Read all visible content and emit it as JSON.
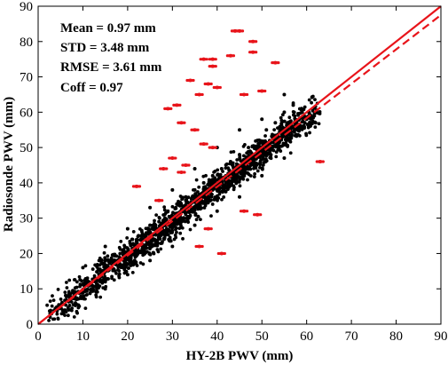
{
  "chart_data": {
    "type": "scatter",
    "title": "",
    "xlabel": "HY-2B PWV (mm)",
    "ylabel": "Radiosonde PWV (mm)",
    "xlim": [
      0,
      90
    ],
    "ylim": [
      0,
      90
    ],
    "xticks": [
      0,
      10,
      20,
      30,
      40,
      50,
      60,
      70,
      80,
      90
    ],
    "yticks": [
      0,
      10,
      20,
      30,
      40,
      50,
      60,
      70,
      80,
      90
    ],
    "grid": false,
    "annotations": [
      "Mean = 0.97 mm",
      "STD = 3.48 mm",
      "RMSE = 3.61 mm",
      "Coff = 0.97"
    ],
    "lines": [
      {
        "kind": "one-to-one",
        "style": "solid",
        "color": "#e8141a",
        "x": [
          0,
          90
        ],
        "y": [
          0,
          90
        ]
      },
      {
        "kind": "fit",
        "style": "dashed",
        "color": "#e8141a",
        "x": [
          0,
          90
        ],
        "y": [
          0,
          87.5
        ]
      }
    ],
    "series": [
      {
        "color": "#000000",
        "description": "dense cloud along the 1:1 line, x from ~2 to ~62 mm",
        "points": [
          [
            3,
            3
          ],
          [
            5,
            5
          ],
          [
            6,
            4
          ],
          [
            8,
            9
          ],
          [
            10,
            9
          ],
          [
            11,
            13
          ],
          [
            12,
            10
          ],
          [
            14,
            15
          ],
          [
            15,
            12
          ],
          [
            16,
            18
          ],
          [
            18,
            17
          ],
          [
            19,
            21
          ],
          [
            20,
            19
          ],
          [
            21,
            24
          ],
          [
            22,
            20
          ],
          [
            23,
            25
          ],
          [
            24,
            22
          ],
          [
            25,
            28
          ],
          [
            26,
            24
          ],
          [
            27,
            29
          ],
          [
            28,
            26
          ],
          [
            29,
            32
          ],
          [
            30,
            28
          ],
          [
            31,
            34
          ],
          [
            32,
            30
          ],
          [
            33,
            36
          ],
          [
            34,
            32
          ],
          [
            35,
            38
          ],
          [
            36,
            34
          ],
          [
            37,
            40
          ],
          [
            38,
            35
          ],
          [
            39,
            42
          ],
          [
            40,
            38
          ],
          [
            41,
            44
          ],
          [
            42,
            40
          ],
          [
            43,
            46
          ],
          [
            44,
            42
          ],
          [
            45,
            48
          ],
          [
            46,
            44
          ],
          [
            47,
            50
          ],
          [
            48,
            46
          ],
          [
            49,
            52
          ],
          [
            50,
            48
          ],
          [
            51,
            55
          ],
          [
            52,
            50
          ],
          [
            53,
            57
          ],
          [
            54,
            52
          ],
          [
            55,
            60
          ],
          [
            56,
            54
          ],
          [
            57,
            62
          ],
          [
            58,
            56
          ],
          [
            59,
            60
          ],
          [
            60,
            58
          ],
          [
            61,
            59
          ],
          [
            62,
            57
          ],
          [
            55,
            65
          ],
          [
            50,
            58
          ],
          [
            45,
            55
          ],
          [
            40,
            50
          ],
          [
            35,
            44
          ],
          [
            30,
            38
          ],
          [
            25,
            33
          ],
          [
            20,
            27
          ],
          [
            15,
            22
          ],
          [
            10,
            16
          ],
          [
            30,
            22
          ],
          [
            35,
            28
          ],
          [
            40,
            32
          ],
          [
            45,
            36
          ],
          [
            50,
            42
          ],
          [
            55,
            47
          ],
          [
            25,
            18
          ],
          [
            20,
            14
          ],
          [
            15,
            10
          ]
        ]
      },
      {
        "color": "#e8141a",
        "description": "outliers above the cloud",
        "points": [
          [
            44,
            83
          ],
          [
            45,
            83
          ],
          [
            48,
            80
          ],
          [
            43,
            76
          ],
          [
            37,
            75
          ],
          [
            39,
            75
          ],
          [
            48,
            77
          ],
          [
            53,
            74
          ],
          [
            39,
            73
          ],
          [
            34,
            69
          ],
          [
            38,
            68
          ],
          [
            36,
            65
          ],
          [
            40,
            67
          ],
          [
            46,
            65
          ],
          [
            50,
            66
          ],
          [
            31,
            62
          ],
          [
            29,
            61
          ],
          [
            32,
            57
          ],
          [
            35,
            55
          ],
          [
            37,
            51
          ],
          [
            39,
            50
          ],
          [
            30,
            47
          ],
          [
            33,
            45
          ],
          [
            28,
            44
          ],
          [
            32,
            43
          ],
          [
            22,
            39
          ],
          [
            27,
            35
          ],
          [
            46,
            32
          ],
          [
            49,
            31
          ],
          [
            38,
            27
          ],
          [
            36,
            22
          ],
          [
            41,
            20
          ],
          [
            63,
            46
          ]
        ]
      }
    ]
  }
}
